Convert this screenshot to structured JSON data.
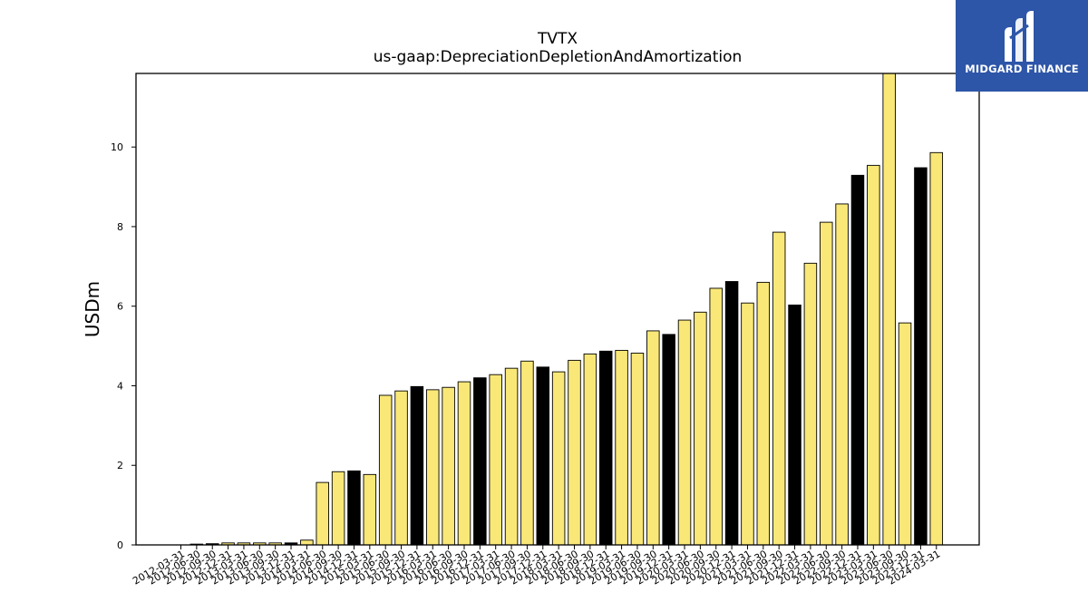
{
  "chart_data": {
    "type": "bar",
    "title": "TVTX",
    "subtitle": "us-gaap:DepreciationDepletionAndAmortization",
    "xlabel": "",
    "ylabel": "USDm",
    "ylim": [
      0,
      11.85
    ],
    "yticks": [
      "0",
      "2",
      "4",
      "6",
      "8",
      "10"
    ],
    "grid": false,
    "colors": {
      "regular": "#f9e878",
      "highlight": "#000000",
      "edge": "#000000"
    },
    "categories": [
      "2012-03-31",
      "2012-06-30",
      "2012-09-30",
      "2012-12-31",
      "2013-03-31",
      "2013-06-30",
      "2013-09-30",
      "2013-12-31",
      "2014-03-31",
      "2014-06-30",
      "2014-09-30",
      "2014-12-31",
      "2015-03-31",
      "2015-06-30",
      "2015-09-30",
      "2015-12-31",
      "2016-03-31",
      "2016-06-30",
      "2016-09-30",
      "2016-12-31",
      "2017-03-31",
      "2017-06-30",
      "2017-09-30",
      "2017-12-31",
      "2018-03-31",
      "2018-06-30",
      "2018-09-30",
      "2018-12-31",
      "2019-03-31",
      "2019-06-30",
      "2019-09-30",
      "2019-12-31",
      "2020-03-31",
      "2020-06-30",
      "2020-09-30",
      "2020-12-31",
      "2021-03-31",
      "2021-06-30",
      "2021-09-30",
      "2021-12-31",
      "2022-03-31",
      "2022-06-30",
      "2022-09-30",
      "2022-12-31",
      "2023-03-31",
      "2023-06-30",
      "2023-09-30",
      "2023-12-31",
      "2024-03-31"
    ],
    "values": [
      0.0,
      0.02,
      0.03,
      0.05,
      0.05,
      0.05,
      0.05,
      0.05,
      0.12,
      1.57,
      1.84,
      1.86,
      1.77,
      3.76,
      3.87,
      3.98,
      3.9,
      3.96,
      4.1,
      4.2,
      4.28,
      4.44,
      4.62,
      4.47,
      4.35,
      4.64,
      4.8,
      4.87,
      4.89,
      4.82,
      5.38,
      5.29,
      5.65,
      5.85,
      6.45,
      6.62,
      6.08,
      6.6,
      7.86,
      6.03,
      7.08,
      8.11,
      8.57,
      9.29,
      9.54,
      11.85,
      5.58,
      9.48,
      9.86
    ],
    "highlight": [
      false,
      false,
      true,
      false,
      false,
      false,
      false,
      true,
      false,
      false,
      false,
      true,
      false,
      false,
      false,
      true,
      false,
      false,
      false,
      true,
      false,
      false,
      false,
      true,
      false,
      false,
      false,
      true,
      false,
      false,
      false,
      true,
      false,
      false,
      false,
      true,
      false,
      false,
      false,
      true,
      false,
      false,
      false,
      true,
      false,
      false,
      false,
      true,
      false
    ]
  },
  "logo": {
    "text": "MIDGARD FINANCE",
    "icon": "midgard-logo-icon",
    "color": "#2d55a8"
  }
}
